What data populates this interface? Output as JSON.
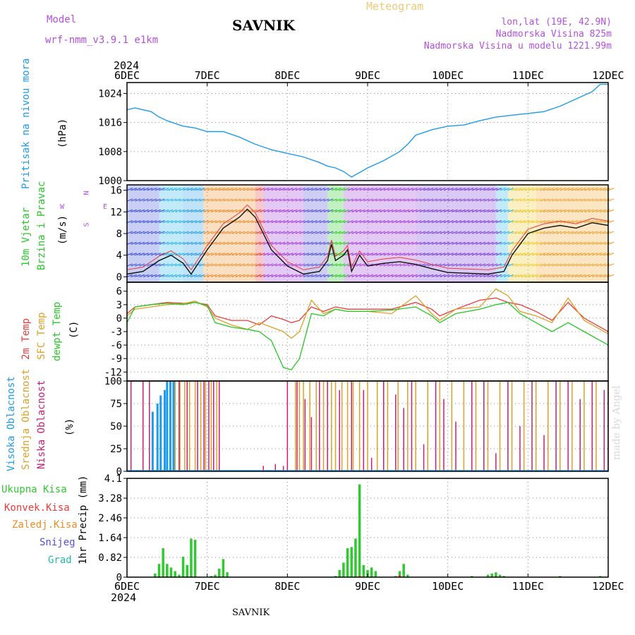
{
  "header": {
    "model_label": "Model",
    "model_name": "wrf-nmm_v3.9.1 e1km",
    "station": "SAVNIK",
    "meteogram": "Meteogram",
    "location": "lon,lat (19E, 42.9N)",
    "altitude": "Nadmorska Visina 825m",
    "model_altitude": "Nadmorska Visina u modelu 1221.99m",
    "year_top": "2024",
    "year_bottom": "2024",
    "footer_station": "SAVNIK",
    "credit": "made by Angel"
  },
  "colors": {
    "pressure": "#1e9be8",
    "temp2m": "#e83c3c",
    "sfc": "#dca028",
    "dew": "#28c828",
    "high_cloud": "#1e9be8",
    "mid_cloud": "#dca028",
    "low_cloud": "#c81e78",
    "precip": "#32c832",
    "conv": "#e83c3c",
    "frz": "#f08c28",
    "snow": "#5050dc",
    "grad": "#28b4b4",
    "wind_label": "#28c828",
    "dir_label": "#b450dc"
  },
  "chart_data": [
    {
      "type": "line",
      "panel": "pressure",
      "ylabel_title": "Pritisak na nivou mora",
      "ylabel_unit": "(hPa)",
      "ylim": [
        1000,
        1027
      ],
      "yticks": [
        "1000",
        "1008",
        "1016",
        "1024"
      ],
      "xticks": [
        "6DEC",
        "7DEC",
        "8DEC",
        "9DEC",
        "10DEC",
        "11DEC",
        "12DEC"
      ],
      "grid": true,
      "series": [
        {
          "x": [
            0,
            0.1,
            0.3,
            0.4,
            0.5,
            0.7,
            0.85,
            1.0,
            1.2,
            1.4,
            1.6,
            1.8,
            2.0,
            2.2,
            2.4,
            2.5,
            2.6,
            2.7,
            2.8,
            3.0,
            3.2,
            3.4,
            3.5,
            3.6,
            3.8,
            4.0,
            4.2,
            4.4,
            4.6,
            4.8,
            5.0,
            5.2,
            5.4,
            5.6,
            5.8,
            5.9,
            6.0
          ],
          "y": [
            1019.5,
            1020,
            1019,
            1017.5,
            1016.5,
            1015,
            1014.5,
            1013.5,
            1013.5,
            1012,
            1010,
            1008.5,
            1007.5,
            1006.5,
            1005,
            1004,
            1003.5,
            1002.5,
            1001,
            1003.5,
            1005.5,
            1008,
            1010,
            1012.5,
            1014,
            1015,
            1015.3,
            1016.5,
            1017.5,
            1018,
            1018.5,
            1019,
            1020.5,
            1022.5,
            1024.5,
            1026.5,
            1026.5
          ]
        }
      ]
    },
    {
      "type": "line",
      "panel": "wind",
      "ylabel_title_1": "10m Vjetar",
      "ylabel_title_2": "Brzina i Pravac",
      "ylabel_unit": "(m/s)",
      "dir_n": "N",
      "dir_s": "S",
      "dir_e": "E",
      "dir_w": "W",
      "ylim": [
        -1,
        17
      ],
      "yticks": [
        "0",
        "4",
        "8",
        "12",
        "16"
      ],
      "grid": true,
      "series": [
        {
          "name": "speed",
          "x": [
            0,
            0.2,
            0.4,
            0.55,
            0.7,
            0.8,
            1.0,
            1.2,
            1.4,
            1.5,
            1.6,
            1.7,
            1.8,
            2.0,
            2.2,
            2.4,
            2.5,
            2.55,
            2.6,
            2.7,
            2.75,
            2.8,
            2.9,
            3.0,
            3.2,
            3.4,
            3.6,
            3.8,
            4.0,
            4.5,
            4.7,
            4.8,
            4.9,
            5.0,
            5.2,
            5.4,
            5.6,
            5.8,
            6.0
          ],
          "y": [
            0.5,
            1,
            3,
            4,
            2.5,
            0.5,
            5,
            9,
            11,
            12.5,
            11,
            8,
            5,
            2,
            0.5,
            1,
            3,
            6,
            3,
            4,
            5,
            1,
            4,
            2,
            2.5,
            2.8,
            2.3,
            1.5,
            0.8,
            0.5,
            1,
            4,
            6,
            8,
            9,
            9.5,
            9,
            10,
            9.5
          ]
        }
      ]
    },
    {
      "type": "line",
      "panel": "temperature",
      "ylabel_t2m": "2m Temp",
      "ylabel_sfc": "SFC Temp",
      "ylabel_dew": "dewpt Temp",
      "ylabel_unit": "(C)",
      "ylim": [
        -14,
        8
      ],
      "yticks": [
        "-12",
        "-9",
        "-6",
        "-3",
        "0",
        "3",
        "6"
      ],
      "grid": true,
      "x": [
        0,
        0.1,
        0.3,
        0.5,
        0.7,
        0.85,
        1.0,
        1.1,
        1.3,
        1.5,
        1.65,
        1.8,
        1.95,
        2.05,
        2.15,
        2.3,
        2.45,
        2.6,
        2.75,
        3.0,
        3.3,
        3.6,
        3.8,
        3.9,
        4.1,
        4.4,
        4.6,
        4.75,
        4.9,
        5.1,
        5.3,
        5.5,
        5.7,
        5.9,
        6.0
      ],
      "series": [
        {
          "name": "2m",
          "y": [
            1,
            2.5,
            3,
            3.5,
            3.3,
            3.5,
            3,
            0.5,
            -0.5,
            -0.5,
            -1.5,
            0.5,
            -0.3,
            -1,
            -0.5,
            2.5,
            1.5,
            2.5,
            2,
            2,
            2,
            3.5,
            2,
            0.5,
            2,
            4,
            4.5,
            3.5,
            3,
            1.5,
            -0.5,
            3.5,
            0,
            -2,
            -3
          ]
        },
        {
          "name": "sfc",
          "y": [
            0.5,
            2,
            2.5,
            3,
            3.2,
            3.8,
            2.5,
            0,
            -1.5,
            -2.5,
            -1,
            -2,
            -3,
            -4.5,
            -3,
            4,
            1,
            2,
            1.5,
            1.5,
            1,
            5,
            1,
            -0.5,
            2,
            2.5,
            6.5,
            5,
            1.5,
            0.5,
            -1,
            4.5,
            -0.5,
            -2.5,
            -3.5
          ]
        },
        {
          "name": "dew",
          "y": [
            -1,
            2.5,
            3,
            3.3,
            3,
            3.5,
            2.8,
            -1,
            -2,
            -2.5,
            -3,
            -5,
            -11,
            -11.5,
            -9,
            1,
            0.5,
            2,
            1.5,
            1.5,
            1.8,
            2.5,
            0.5,
            -1,
            1,
            2,
            3,
            3.5,
            1,
            -1,
            -3,
            -1,
            -3,
            -5,
            -6
          ]
        }
      ]
    },
    {
      "type": "bar",
      "panel": "cloud",
      "ylabel_high": "Visoka Oblacnost",
      "ylabel_mid": "Srednja Oblacnost",
      "ylabel_low": "Niska Oblacnost",
      "ylabel_unit": "(%)",
      "ylim": [
        0,
        100
      ],
      "yticks": [
        "0",
        "25",
        "50",
        "75",
        "100"
      ],
      "grid": true,
      "series": [
        {
          "name": "high",
          "x": [
            0.32,
            0.38,
            0.42,
            0.47,
            0.5,
            0.54,
            0.58
          ],
          "y": [
            66,
            75,
            84,
            90,
            100,
            100,
            100
          ]
        },
        {
          "name": "mid",
          "x": [
            0.6,
            0.66,
            0.72,
            0.78,
            0.85,
            0.92,
            0.98,
            1.05,
            1.12,
            2.1,
            2.15,
            2.2,
            2.28,
            2.36,
            2.45,
            2.55,
            2.6,
            2.68,
            2.75,
            2.82,
            2.9,
            3.0,
            3.12,
            3.25,
            3.38,
            3.5,
            3.6,
            3.75,
            3.9,
            4.05,
            4.2,
            4.35,
            4.5,
            4.65,
            4.8,
            4.95,
            5.1,
            5.25,
            5.4,
            5.55,
            5.7,
            5.85,
            6.0
          ],
          "y": [
            100,
            100,
            100,
            100,
            100,
            100,
            100,
            100,
            100,
            100,
            100,
            100,
            100,
            100,
            100,
            100,
            100,
            100,
            100,
            100,
            100,
            100,
            100,
            100,
            100,
            100,
            100,
            100,
            100,
            100,
            100,
            100,
            100,
            100,
            100,
            100,
            100,
            100,
            100,
            100,
            100,
            100,
            100
          ]
        },
        {
          "name": "low",
          "x": [
            0.05,
            0.2,
            0.28,
            0.65,
            0.75,
            0.88,
            0.96,
            1.02,
            1.08,
            1.15,
            1.7,
            1.85,
            1.95,
            2.0,
            2.12,
            2.22,
            2.3,
            2.4,
            2.5,
            2.65,
            2.8,
            2.95,
            3.05,
            3.2,
            3.35,
            3.45,
            3.55,
            3.7,
            3.85,
            3.95,
            4.1,
            4.3,
            4.45,
            4.6,
            4.75,
            4.9,
            5.05,
            5.2,
            5.35,
            5.5,
            5.65,
            5.8,
            5.95
          ],
          "y": [
            100,
            100,
            100,
            100,
            100,
            100,
            100,
            100,
            100,
            100,
            6,
            8,
            6,
            100,
            100,
            80,
            60,
            100,
            100,
            90,
            100,
            90,
            15,
            100,
            85,
            70,
            100,
            30,
            100,
            80,
            55,
            100,
            100,
            20,
            100,
            50,
            100,
            40,
            100,
            100,
            80,
            100,
            90
          ]
        }
      ]
    },
    {
      "type": "bar",
      "panel": "precip",
      "ylabel_unit": "1hr Precip (mm)",
      "legend_total": "Ukupna Kisa",
      "legend_conv": "Konvek.Kisa",
      "legend_frz": "Zaledj.Kisa",
      "legend_snow": "Snijeg",
      "legend_grad": "Grad",
      "ylim": [
        0,
        4.1
      ],
      "yticks": [
        "0",
        "0.82",
        "1.64",
        "2.46",
        "3.28",
        "4.1"
      ],
      "xticks": [
        "6DEC",
        "7DEC",
        "8DEC",
        "9DEC",
        "10DEC",
        "11DEC",
        "12DEC"
      ],
      "grid": true,
      "series": [
        {
          "name": "total",
          "x": [
            0.35,
            0.4,
            0.45,
            0.5,
            0.55,
            0.6,
            0.65,
            0.7,
            0.75,
            0.8,
            0.85,
            1.05,
            1.1,
            1.15,
            1.2,
            1.25,
            2.6,
            2.65,
            2.7,
            2.75,
            2.8,
            2.85,
            2.9,
            2.95,
            3.0,
            3.05,
            3.1,
            3.35,
            3.4,
            3.45,
            3.5,
            4.3,
            4.5,
            4.55,
            4.6,
            4.65,
            4.7,
            5.4,
            5.9
          ],
          "y": [
            0.15,
            0.55,
            1.2,
            0.55,
            0.4,
            0.25,
            0.1,
            0.85,
            0.5,
            1.6,
            1.55,
            0.05,
            0.1,
            0.35,
            0.75,
            0.2,
            0.05,
            0.3,
            0.6,
            1.2,
            1.25,
            1.6,
            3.85,
            0.5,
            0.3,
            0.4,
            0.25,
            0.05,
            0.25,
            0.55,
            0.1,
            0.05,
            0.1,
            0.15,
            0.2,
            0.1,
            0.05,
            0.05,
            0.05
          ]
        },
        {
          "name": "conv",
          "x": [
            0.4,
            0.5,
            0.8,
            1.2,
            2.9,
            3.4,
            4.6
          ],
          "y": [
            0.03,
            0.03,
            0.03,
            0.03,
            0.05,
            0.08,
            0.04
          ]
        }
      ]
    }
  ]
}
